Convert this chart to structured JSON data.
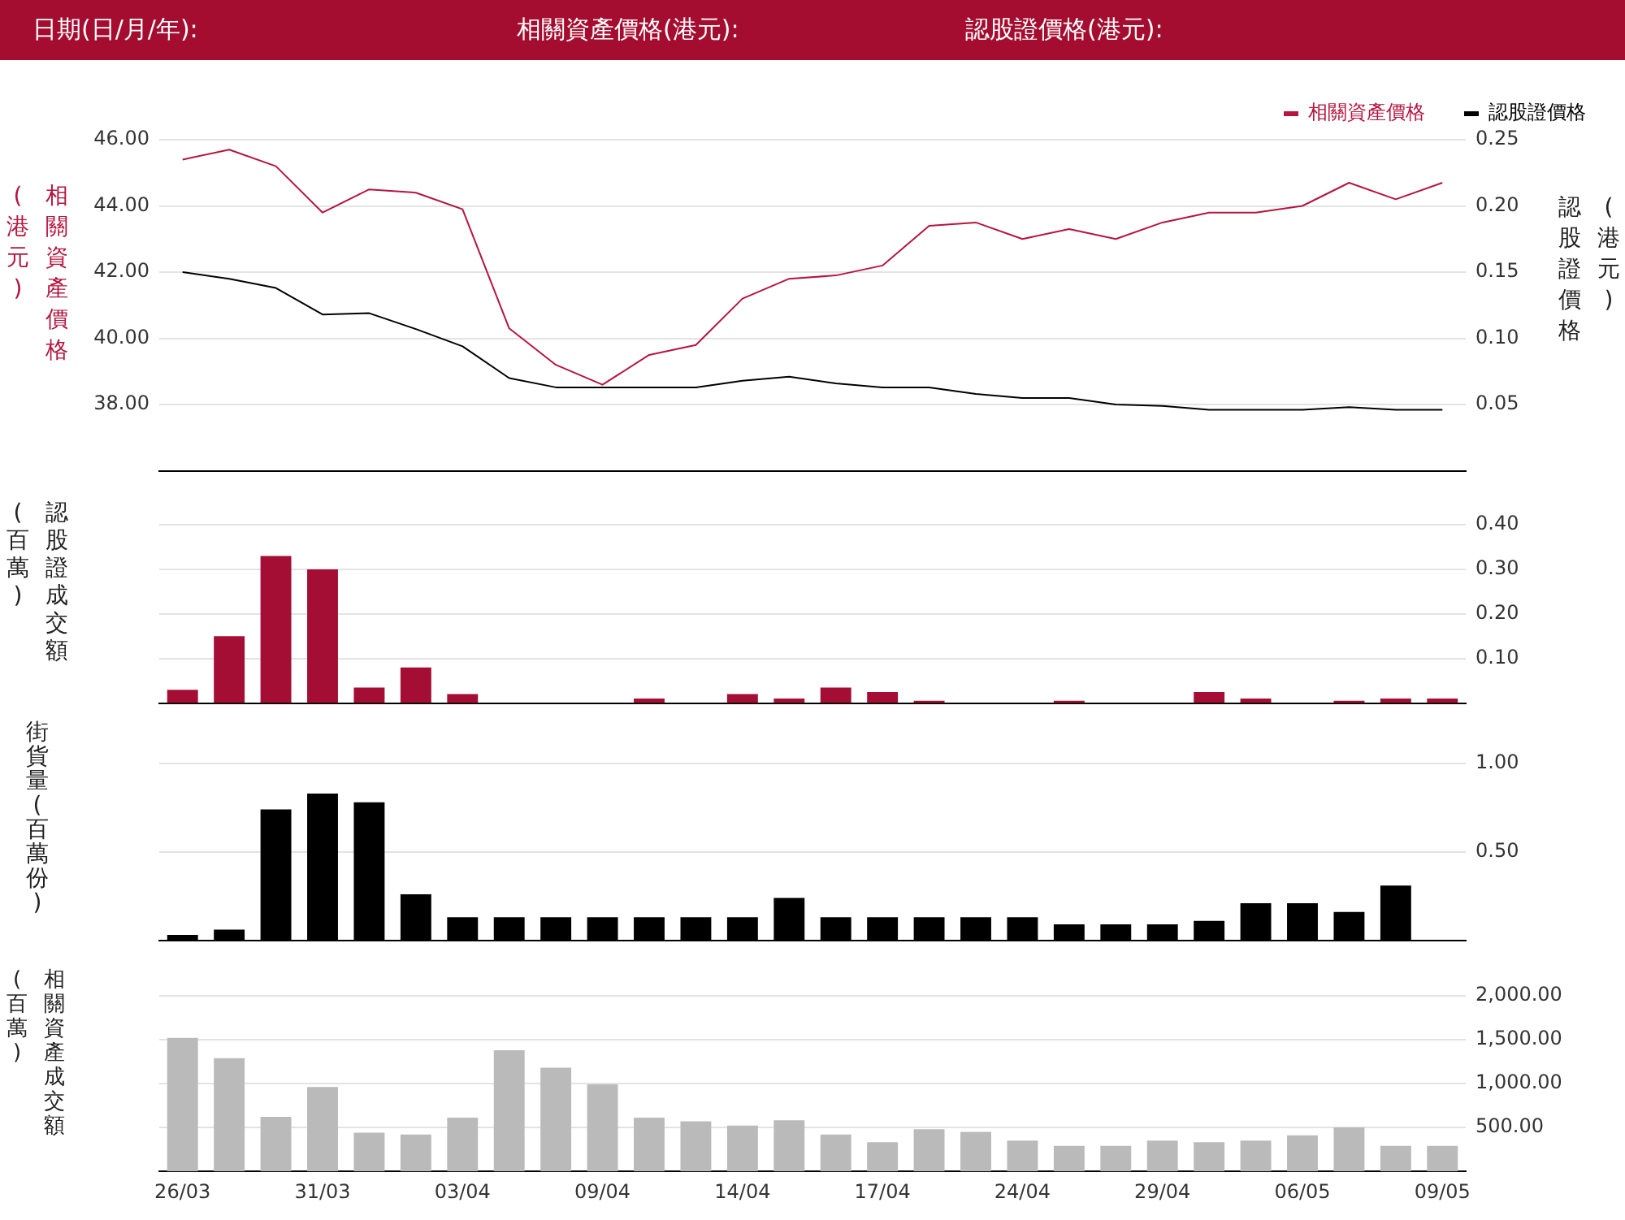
{
  "chart_data": [
    {
      "type": "line",
      "annotations": [
        "日期(日/月/年):",
        "相關資產價格(港元):",
        "認股證價格(港元):"
      ],
      "ylabel": "相關資產價格\n(港元)",
      "y2label": "認股證價格\n(港元)",
      "categories": [
        null,
        null,
        null,
        null,
        null,
        null,
        null,
        null,
        null,
        null,
        null,
        null,
        null,
        null,
        null,
        null,
        null,
        null,
        null,
        null,
        null,
        null,
        null,
        null,
        null,
        null,
        null,
        null
      ],
      "series": [
        {
          "name": "相關資產價格",
          "color": "#b5153f",
          "values": [
            45.4,
            45.7,
            45.2,
            43.8,
            44.5,
            44.4,
            43.9,
            40.3,
            39.2,
            38.6,
            39.5,
            39.8,
            41.2,
            41.8,
            41.9,
            42.2,
            43.4,
            43.5,
            43.0,
            43.3,
            43.0,
            43.5,
            43.8,
            43.8,
            44.0,
            44.7,
            44.2,
            44.7
          ]
        },
        {
          "name": "認股證價格",
          "color": "#000000",
          "axis": "y2",
          "values": [
            0.15,
            0.145,
            0.138,
            0.118,
            0.119,
            0.107,
            0.094,
            0.07,
            0.063,
            0.063,
            0.063,
            0.063,
            0.068,
            0.071,
            0.066,
            0.063,
            0.063,
            0.058,
            0.055,
            0.055,
            0.05,
            0.049,
            0.046,
            0.046,
            0.046,
            0.048,
            0.046,
            0.046
          ]
        }
      ],
      "ylim": [
        36,
        46
      ],
      "yticks": [
        {
          "value": 38,
          "label": "38.00"
        },
        {
          "value": 40,
          "label": "40.00"
        },
        {
          "value": 42,
          "label": "42.00"
        },
        {
          "value": 44,
          "label": "44.00"
        },
        {
          "value": 46,
          "label": "46.00"
        }
      ],
      "y2lim": [
        0,
        0.25
      ],
      "y2ticks": [
        {
          "value": 0.05,
          "label": "0.05"
        },
        {
          "value": 0.1,
          "label": "0.10"
        },
        {
          "value": 0.15,
          "label": "0.15"
        },
        {
          "value": 0.2,
          "label": "0.20"
        },
        {
          "value": 0.25,
          "label": "0.25"
        }
      ],
      "grid": "y",
      "legend": "top right",
      "tick_labels": "y",
      "marker": "none",
      "line_style": "solid"
    },
    {
      "type": "bar",
      "ylabel": "認股證成交額\n(百萬)",
      "categories": [
        null,
        null,
        null,
        null,
        null,
        null,
        null,
        null,
        null,
        null,
        null,
        null,
        null,
        null,
        null,
        null,
        null,
        null,
        null,
        null,
        null,
        null,
        null,
        null,
        null,
        null,
        null,
        null
      ],
      "series": [
        {
          "color": "#a50e34",
          "values": [
            0.03,
            0.15,
            0.33,
            0.3,
            0.035,
            0.08,
            0.02,
            0,
            0,
            0,
            0.01,
            0,
            0.02,
            0.01,
            0.035,
            0.025,
            0.005,
            0,
            0,
            0.005,
            0,
            0,
            0.025,
            0.01,
            0,
            0.005,
            0.01,
            0.01
          ]
        }
      ],
      "ylim": [
        0,
        0.4
      ],
      "yticks": [
        {
          "value": 0.1,
          "label": "0.10"
        },
        {
          "value": 0.2,
          "label": "0.20"
        },
        {
          "value": 0.3,
          "label": "0.30"
        },
        {
          "value": 0.4,
          "label": "0.40"
        }
      ],
      "grid": "y",
      "tick_labels": "y"
    },
    {
      "type": "bar",
      "ylabel": "街貨量\n(百萬份)",
      "categories": [
        null,
        null,
        null,
        null,
        null,
        null,
        null,
        null,
        null,
        null,
        null,
        null,
        null,
        null,
        null,
        null,
        null,
        null,
        null,
        null,
        null,
        null,
        null,
        null,
        null,
        null,
        null,
        null
      ],
      "series": [
        {
          "color": "#000000",
          "values": [
            0.03,
            0.06,
            0.74,
            0.83,
            0.78,
            0.26,
            0.13,
            0.13,
            0.13,
            0.13,
            0.13,
            0.13,
            0.13,
            0.24,
            0.13,
            0.13,
            0.13,
            0.13,
            0.13,
            0.09,
            0.09,
            0.09,
            0.11,
            0.21,
            0.21,
            0.16,
            0.31,
            null
          ]
        }
      ],
      "ylim": [
        0,
        1
      ],
      "yticks": [
        {
          "value": 0.5,
          "label": "0.50"
        },
        {
          "value": 1,
          "label": "1.00"
        }
      ],
      "grid": "y",
      "tick_labels": "y"
    },
    {
      "type": "bar",
      "ylabel": "相關資產成交額\n(百萬)",
      "categories": [
        "26/03",
        null,
        null,
        "31/03",
        null,
        null,
        "03/04",
        null,
        null,
        "09/04",
        null,
        null,
        "14/04",
        null,
        null,
        "17/04",
        null,
        null,
        "24/04",
        null,
        null,
        "29/04",
        null,
        null,
        "06/05",
        null,
        null,
        "09/05"
      ],
      "series": [
        {
          "color": "#bababa",
          "values": [
            1520,
            1290,
            620,
            960,
            440,
            420,
            610,
            1380,
            1180,
            990,
            610,
            570,
            520,
            580,
            420,
            330,
            480,
            450,
            350,
            290,
            290,
            350,
            330,
            350,
            410,
            500,
            290,
            290
          ]
        }
      ],
      "ylim": [
        0,
        2000
      ],
      "yticks": [
        {
          "value": 500,
          "label": "500.00"
        },
        {
          "value": 1000,
          "label": "1,000.00"
        },
        {
          "value": 1500,
          "label": "1,500.00"
        },
        {
          "value": 2000,
          "label": "2,000.00"
        }
      ],
      "grid": "y"
    }
  ]
}
